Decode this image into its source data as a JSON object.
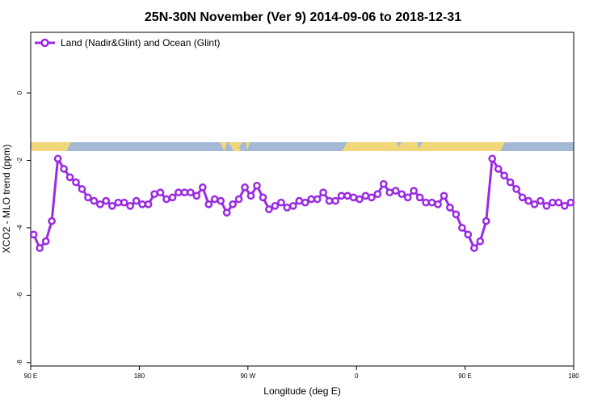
{
  "chart_data": {
    "type": "line",
    "title": "25N-30N November (Ver 9)   2014-09-06 to 2018-12-31",
    "xlabel": "Longitude (deg E)",
    "ylabel": "XCO2 - MLO trend (ppm)",
    "xlim": [
      90,
      540
    ],
    "ylim": [
      -8.1,
      1.8
    ],
    "x_tick_values": [
      90,
      180,
      270,
      360,
      450,
      540
    ],
    "x_tick_labels": [
      "90 E",
      "180",
      "90 W",
      "0",
      "90 E",
      "180"
    ],
    "y_tick_values": [
      0,
      -2,
      -4,
      -6,
      -8
    ],
    "y_tick_labels": [
      "0",
      "-2",
      "-4",
      "-6",
      "-8"
    ],
    "grid": false,
    "legend_position": "top-left",
    "series": [
      {
        "name": "Land (Nadir&Glint) and Ocean (Glint)",
        "color": "#9a2be2",
        "x": [
          92.5,
          97.5,
          102.5,
          107.5,
          112.5,
          117.5,
          122.5,
          127.5,
          132.5,
          137.5,
          142.5,
          147.5,
          152.5,
          157.5,
          162.5,
          167.5,
          172.5,
          177.5,
          182.5,
          187.5,
          192.5,
          197.5,
          202.5,
          207.5,
          212.5,
          217.5,
          222.5,
          227.5,
          232.5,
          237.5,
          242.5,
          247.5,
          252.5,
          257.5,
          262.5,
          267.5,
          272.5,
          277.5,
          282.5,
          287.5,
          292.5,
          297.5,
          302.5,
          307.5,
          312.5,
          317.5,
          322.5,
          327.5,
          332.5,
          337.5,
          342.5,
          347.5,
          352.5,
          357.5,
          362.5,
          367.5,
          372.5,
          377.5,
          382.5,
          387.5,
          392.5,
          397.5,
          402.5,
          407.5,
          412.5,
          417.5,
          422.5,
          427.5,
          432.5,
          437.5,
          442.5,
          447.5,
          452.5,
          457.5,
          462.5,
          467.5,
          472.5,
          477.5,
          482.5,
          487.5,
          492.5,
          497.5,
          502.5,
          507.5,
          512.5,
          517.5,
          522.5,
          527.5,
          532.5,
          537.5
        ],
        "y": [
          -4.2,
          -4.6,
          -4.4,
          -3.8,
          -1.95,
          -2.25,
          -2.5,
          -2.65,
          -2.85,
          -3.1,
          -3.2,
          -3.3,
          -3.2,
          -3.35,
          -3.25,
          -3.25,
          -3.35,
          -3.2,
          -3.3,
          -3.3,
          -3.0,
          -2.95,
          -3.15,
          -3.1,
          -2.95,
          -2.95,
          -2.95,
          -3.05,
          -2.8,
          -3.3,
          -3.15,
          -3.2,
          -3.55,
          -3.3,
          -3.15,
          -2.8,
          -3.05,
          -2.75,
          -3.1,
          -3.45,
          -3.35,
          -3.25,
          -3.4,
          -3.35,
          -3.2,
          -3.25,
          -3.15,
          -3.15,
          -2.95,
          -3.2,
          -3.2,
          -3.05,
          -3.05,
          -3.1,
          -3.15,
          -3.05,
          -3.1,
          -3.0,
          -2.7,
          -2.95,
          -2.9,
          -3.0,
          -3.1,
          -2.9,
          -3.1,
          -3.25,
          -3.25,
          -3.3,
          -3.05,
          -3.4,
          -3.6,
          -4.0,
          -4.2,
          -4.6,
          -4.4,
          -3.8,
          -1.95,
          -2.25,
          -2.45,
          -2.65,
          -2.85,
          -3.1,
          -3.2,
          -3.3,
          -3.2,
          -3.35,
          -3.25,
          -3.25,
          -3.35,
          -3.25
        ]
      }
    ]
  }
}
